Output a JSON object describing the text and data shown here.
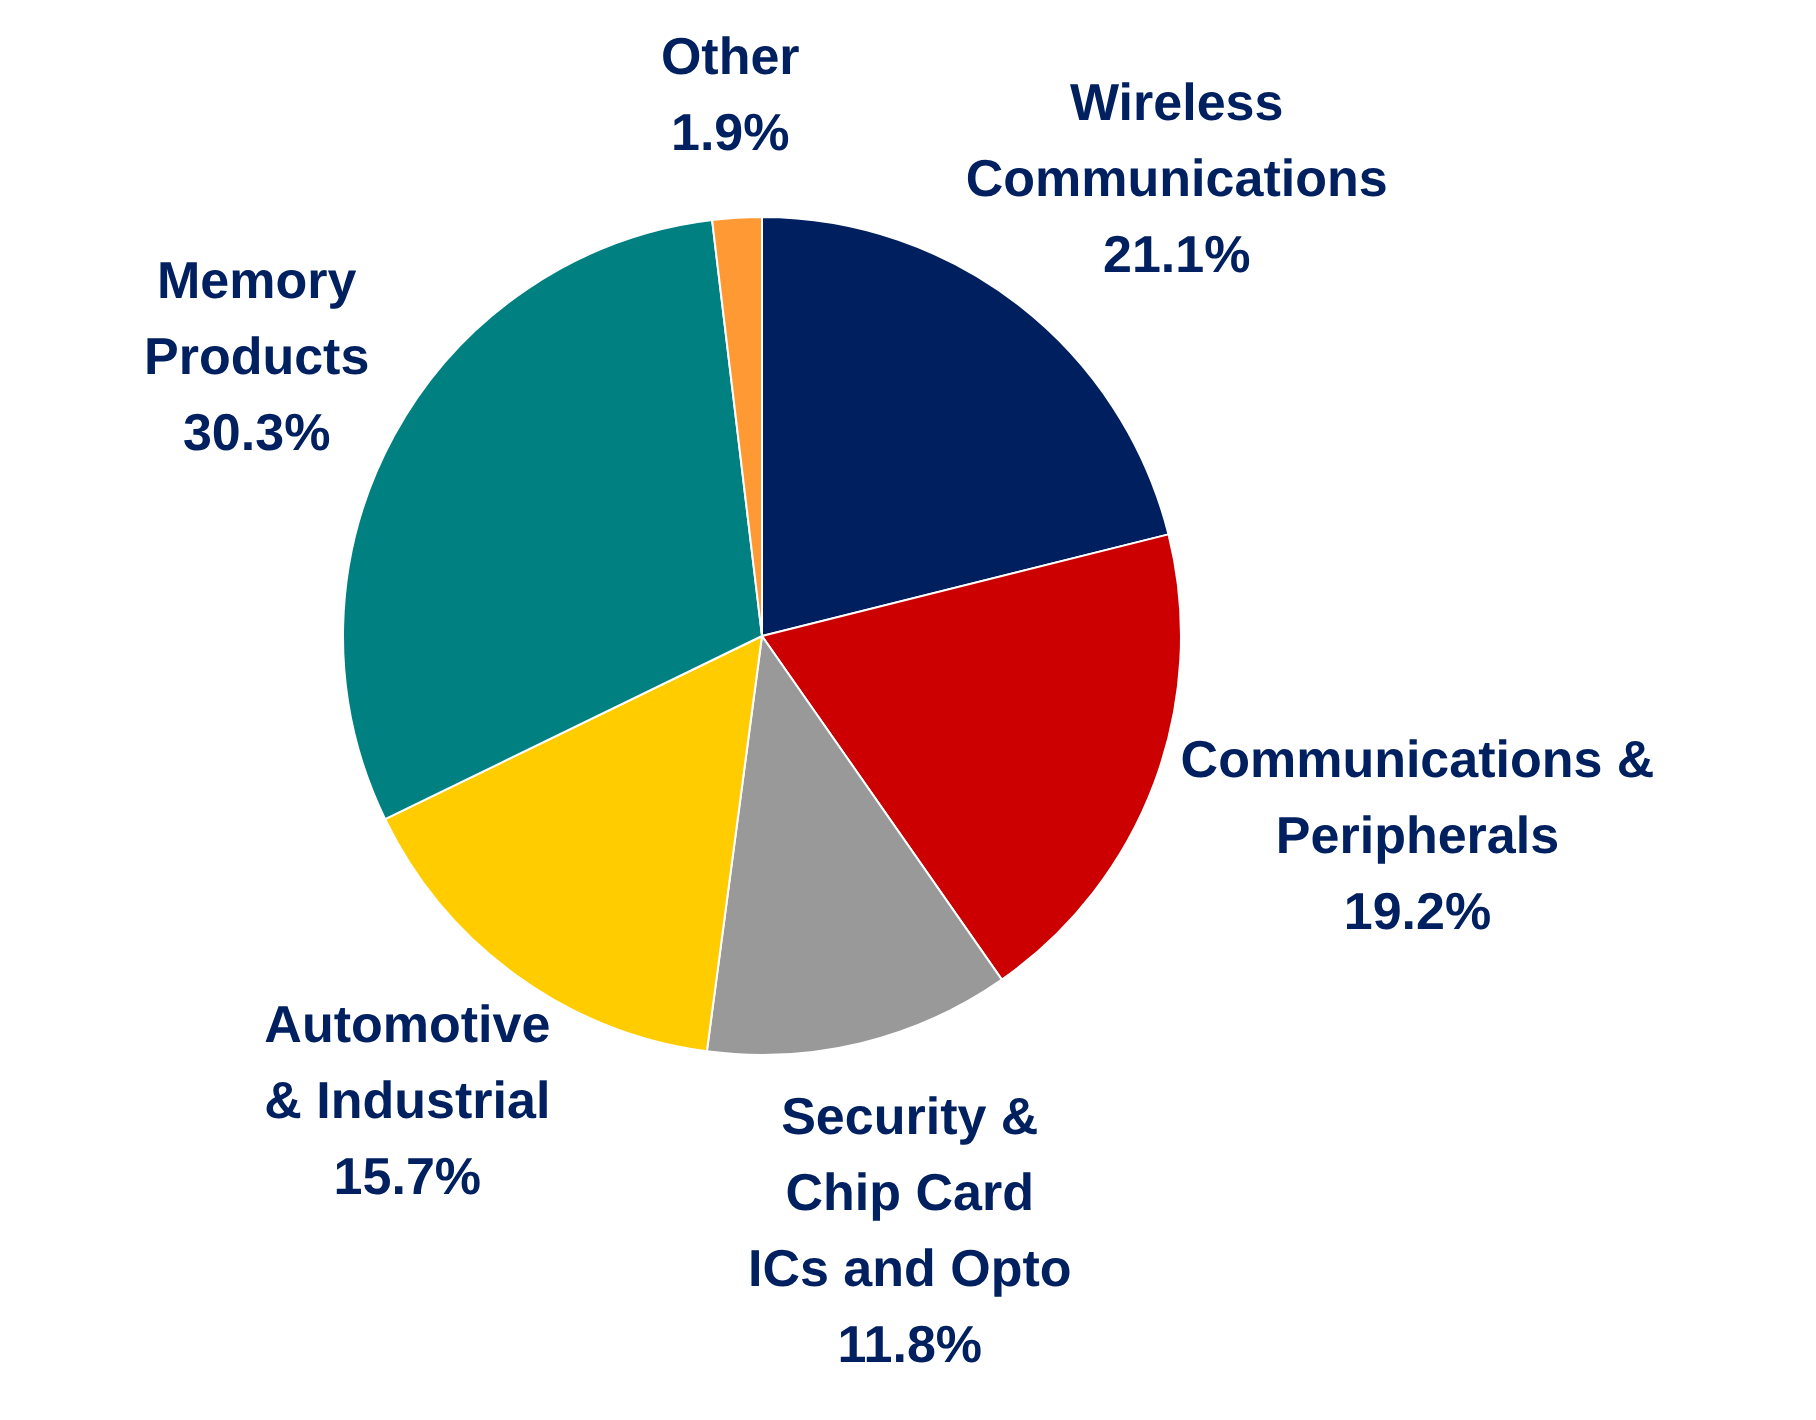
{
  "chart_data": {
    "type": "pie",
    "categories": [
      "Wireless\nCommunications",
      "Communications &\nPeripherals",
      "Security &\nChip Card\nICs and Opto",
      "Automotive\n& Industrial",
      "Memory\nProducts",
      "Other"
    ],
    "values": [
      21.1,
      19.2,
      11.8,
      15.7,
      30.3,
      1.9
    ],
    "colors": [
      "#001f5f",
      "#cc0000",
      "#999999",
      "#ffcc00",
      "#008080",
      "#ff9933"
    ],
    "value_labels": [
      "21.1%",
      "19.2%",
      "11.8%",
      "15.7%",
      "30.3%",
      "1.9%"
    ],
    "legend": false
  }
}
